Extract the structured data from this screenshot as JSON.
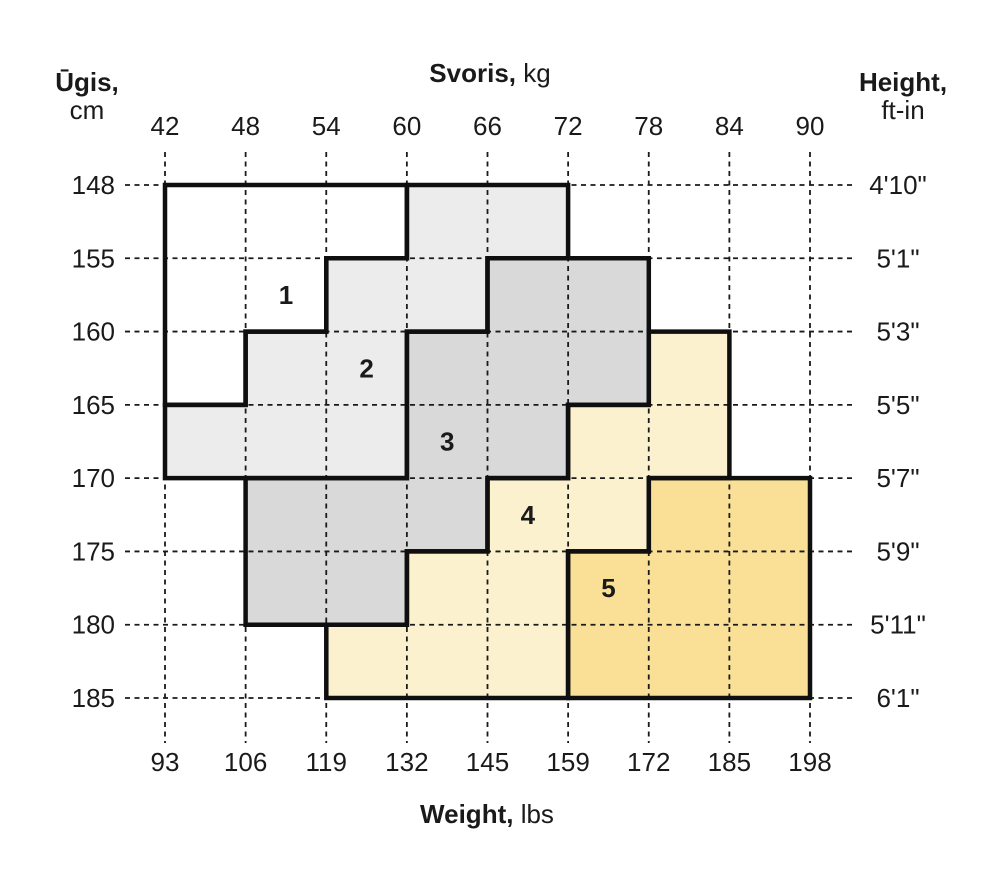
{
  "page": {
    "background": "#ffffff"
  },
  "chart_data": {
    "type": "heatmap",
    "description": "Stepped size chart: five numbered weight/height zones drawn as staircase regions on a weight (kg top / lbs bottom) vs height (cm left / ft-in right) grid",
    "grid": {
      "style": "dashed",
      "color": "#1a1a1a"
    },
    "border_color": "#0f0f0f",
    "text_color": "#1a1a1a",
    "axes": {
      "top": {
        "title_bold": "Svoris,",
        "title_regular": "kg",
        "ticks": [
          42,
          48,
          54,
          60,
          66,
          72,
          78,
          84,
          90
        ]
      },
      "bottom": {
        "title_bold": "Weight,",
        "title_regular": "lbs",
        "ticks": [
          93,
          106,
          119,
          132,
          145,
          159,
          172,
          185,
          198
        ]
      },
      "left": {
        "title_bold": "Ūgis,",
        "title_regular": "cm",
        "ticks": [
          148,
          155,
          160,
          165,
          170,
          175,
          180,
          185
        ]
      },
      "right": {
        "title_bold": "Height,",
        "title_regular": "ft-in",
        "ticks": [
          "4'10\"",
          "5'1\"",
          "5'3\"",
          "5'5\"",
          "5'7\"",
          "5'9\"",
          "5'11\"",
          "6'1\""
        ]
      }
    },
    "regions": [
      {
        "label": "1",
        "fill": "#ffffff",
        "label_cell": {
          "kg": 51,
          "cm": [
            155,
            160
          ]
        },
        "polygon_kg_cm": [
          [
            42,
            148
          ],
          [
            60,
            148
          ],
          [
            60,
            155
          ],
          [
            54,
            155
          ],
          [
            54,
            160
          ],
          [
            48,
            160
          ],
          [
            48,
            165
          ],
          [
            42,
            165
          ]
        ]
      },
      {
        "label": "2",
        "fill": "#ececec",
        "label_cell": {
          "kg": 57,
          "cm": [
            160,
            165
          ]
        },
        "polygon_kg_cm": [
          [
            60,
            148
          ],
          [
            72,
            148
          ],
          [
            72,
            155
          ],
          [
            66,
            155
          ],
          [
            66,
            160
          ],
          [
            60,
            160
          ],
          [
            60,
            170
          ],
          [
            42,
            170
          ],
          [
            42,
            165
          ],
          [
            48,
            165
          ],
          [
            48,
            160
          ],
          [
            54,
            160
          ],
          [
            54,
            155
          ],
          [
            60,
            155
          ]
        ]
      },
      {
        "label": "3",
        "fill": "#d9d9d9",
        "label_cell": {
          "kg": 63,
          "cm": [
            165,
            170
          ]
        },
        "polygon_kg_cm": [
          [
            66,
            155
          ],
          [
            78,
            155
          ],
          [
            78,
            165
          ],
          [
            72,
            165
          ],
          [
            72,
            170
          ],
          [
            66,
            170
          ],
          [
            66,
            175
          ],
          [
            60,
            175
          ],
          [
            60,
            180
          ],
          [
            48,
            180
          ],
          [
            48,
            170
          ],
          [
            60,
            170
          ],
          [
            60,
            160
          ],
          [
            66,
            160
          ]
        ]
      },
      {
        "label": "4",
        "fill": "#fcf1cf",
        "label_cell": {
          "kg": 69,
          "cm": [
            170,
            175
          ]
        },
        "polygon_kg_cm": [
          [
            78,
            160
          ],
          [
            84,
            160
          ],
          [
            84,
            170
          ],
          [
            78,
            170
          ],
          [
            78,
            175
          ],
          [
            72,
            175
          ],
          [
            72,
            185
          ],
          [
            54,
            185
          ],
          [
            54,
            180
          ],
          [
            60,
            180
          ],
          [
            60,
            175
          ],
          [
            66,
            175
          ],
          [
            66,
            170
          ],
          [
            72,
            170
          ],
          [
            72,
            165
          ],
          [
            78,
            165
          ]
        ]
      },
      {
        "label": "5",
        "fill": "#fae096",
        "label_cell": {
          "kg": 75,
          "cm": [
            175,
            180
          ]
        },
        "polygon_kg_cm": [
          [
            78,
            170
          ],
          [
            90,
            170
          ],
          [
            90,
            185
          ],
          [
            72,
            185
          ],
          [
            72,
            175
          ],
          [
            78,
            175
          ]
        ]
      }
    ]
  }
}
